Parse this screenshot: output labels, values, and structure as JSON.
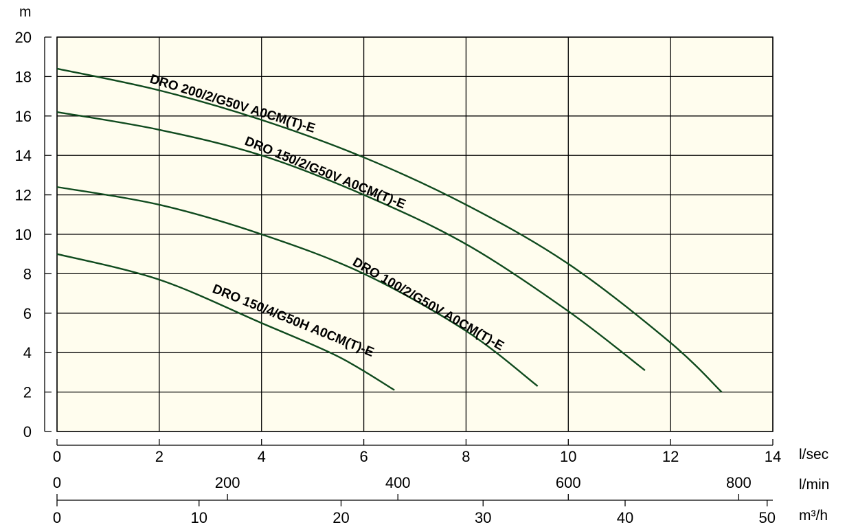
{
  "chart_data": {
    "type": "line",
    "title": "",
    "ylabel": "m",
    "ylim": [
      0,
      20
    ],
    "y_ticks": [
      0,
      2,
      4,
      6,
      8,
      10,
      12,
      14,
      16,
      18,
      20
    ],
    "x_axes": [
      {
        "unit": "l/sec",
        "range": [
          0,
          14
        ],
        "ticks": [
          0,
          2,
          4,
          6,
          8,
          10,
          12,
          14
        ]
      },
      {
        "unit": "l/min",
        "range": [
          0,
          840
        ],
        "ticks": [
          0,
          200,
          400,
          600,
          800
        ]
      },
      {
        "unit": "m³/h",
        "range": [
          0,
          50.4
        ],
        "ticks": [
          0,
          10,
          20,
          30,
          40,
          50
        ]
      }
    ],
    "grid": true,
    "background_color": "#fffdee",
    "curve_color": "#0f4a1e",
    "series": [
      {
        "name": "DRO 200/2/G50V A0CM(T)-E",
        "x": [
          0,
          2,
          4,
          6,
          8,
          10,
          12,
          13
        ],
        "y": [
          18.4,
          17.3,
          15.8,
          13.9,
          11.5,
          8.5,
          4.5,
          2.0
        ]
      },
      {
        "name": "DRO 150/2/G50V A0CM(T)-E",
        "x": [
          0,
          2,
          4,
          6,
          8,
          10,
          11.5
        ],
        "y": [
          16.2,
          15.3,
          14.0,
          12.0,
          9.5,
          6.1,
          3.1
        ]
      },
      {
        "name": "DRO 100/2/G50V A0CM(T)-E",
        "x": [
          0,
          2,
          4,
          6,
          8,
          9.4
        ],
        "y": [
          12.4,
          11.5,
          10.0,
          8.0,
          5.1,
          2.3
        ]
      },
      {
        "name": "DRO 150/4/G50H A0CM(T)-E",
        "x": [
          0,
          2,
          4,
          5.5,
          6.6
        ],
        "y": [
          9.0,
          7.7,
          5.5,
          3.8,
          2.1
        ]
      }
    ]
  }
}
